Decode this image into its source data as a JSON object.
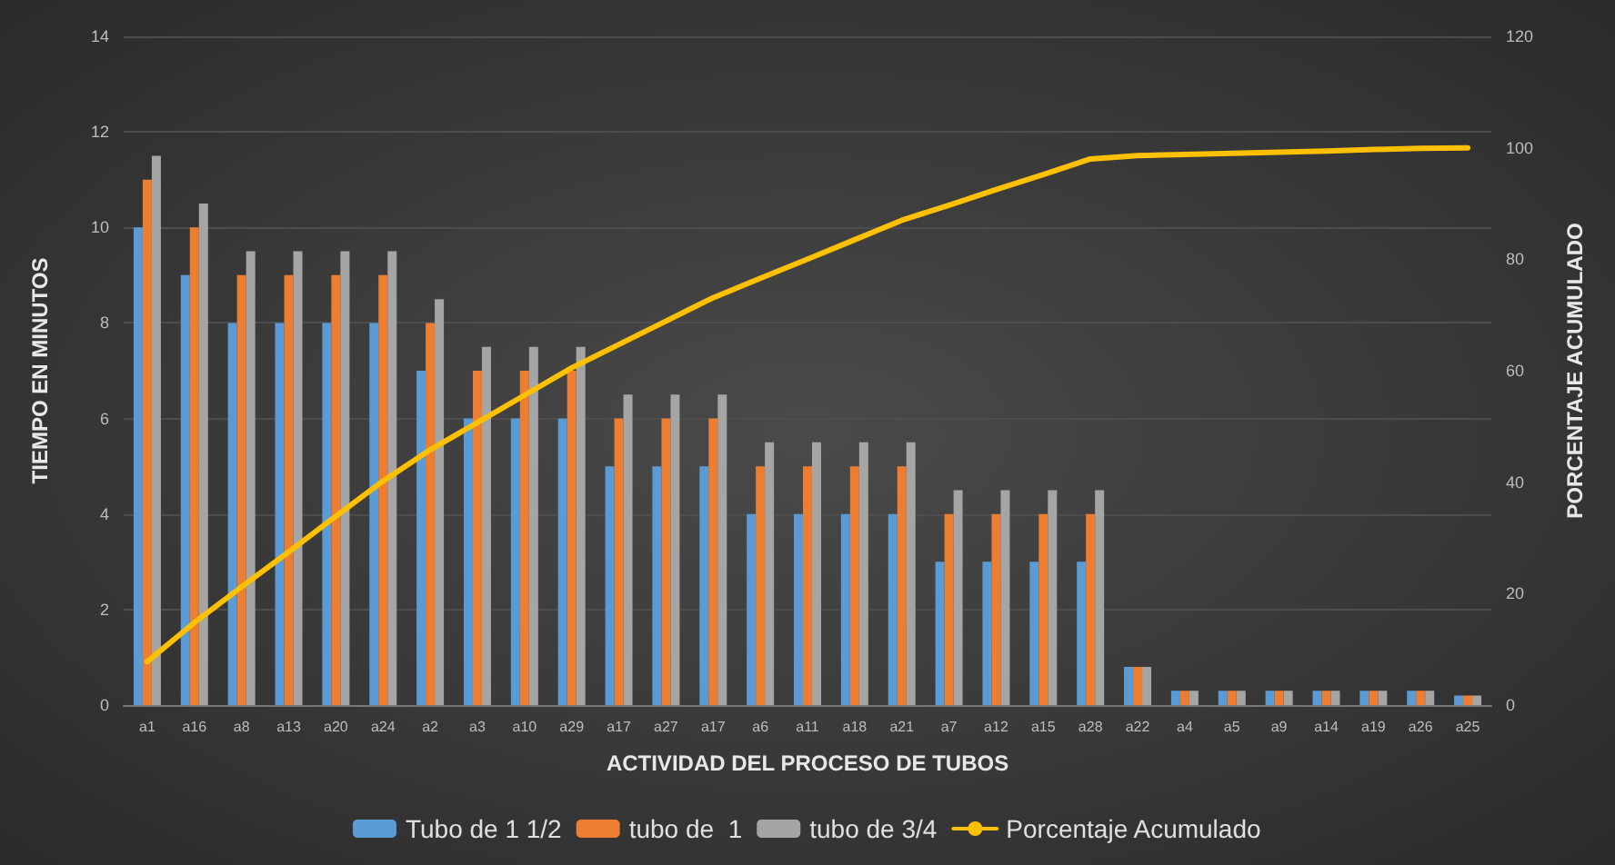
{
  "chart_data": {
    "type": "bar",
    "xlabel": "ACTIVIDAD DEL PROCESO DE TUBOS",
    "ylabel": "TIEMPO EN MINUTOS",
    "y2label": "PORCENTAJE ACUMULADO",
    "categories": [
      "a1",
      "a16",
      "a8",
      "a13",
      "a20",
      "a24",
      "a2",
      "a3",
      "a10",
      "a29",
      "a17",
      "a27",
      "a17",
      "a6",
      "a11",
      "a18",
      "a21",
      "a7",
      "a12",
      "a15",
      "a28",
      "a22",
      "a4",
      "a5",
      "a9",
      "a14",
      "a19",
      "a26",
      "a25"
    ],
    "series": [
      {
        "name": "Tubo de 1 1/2",
        "color": "#5b9bd5",
        "values": [
          10,
          9,
          8,
          8,
          8,
          8,
          7,
          6,
          6,
          6,
          5,
          5,
          5,
          4,
          4,
          4,
          4,
          3,
          3,
          3,
          3,
          0.8,
          0.3,
          0.3,
          0.3,
          0.3,
          0.3,
          0.3,
          0.2
        ]
      },
      {
        "name": "tubo de  1",
        "color": "#ed7d31",
        "values": [
          11,
          10,
          9,
          9,
          9,
          9,
          8,
          7,
          7,
          7,
          6,
          6,
          6,
          5,
          5,
          5,
          5,
          4,
          4,
          4,
          4,
          0.8,
          0.3,
          0.3,
          0.3,
          0.3,
          0.3,
          0.3,
          0.2
        ]
      },
      {
        "name": "tubo de 3/4",
        "color": "#a5a5a5",
        "values": [
          11.5,
          10.5,
          9.5,
          9.5,
          9.5,
          9.5,
          8.5,
          7.5,
          7.5,
          7.5,
          6.5,
          6.5,
          6.5,
          5.5,
          5.5,
          5.5,
          5.5,
          4.5,
          4.5,
          4.5,
          4.5,
          0.8,
          0.3,
          0.3,
          0.3,
          0.3,
          0.3,
          0.3,
          0.2
        ]
      },
      {
        "name": "Porcentaje Acumulado",
        "type": "line",
        "axis": "y2",
        "color": "#ffc000",
        "values": [
          7.8,
          14.8,
          21.2,
          27.5,
          33.9,
          40.2,
          45.8,
          50.7,
          55.6,
          60.5,
          64.7,
          68.9,
          73.1,
          76.6,
          80.0,
          83.5,
          87.0,
          89.7,
          92.5,
          95.2,
          98.0,
          98.6,
          98.8,
          99.0,
          99.2,
          99.4,
          99.7,
          99.9,
          100
        ]
      }
    ],
    "ylim": [
      0,
      14
    ],
    "yticks": [
      0,
      2,
      4,
      6,
      8,
      10,
      12,
      14
    ],
    "y2lim": [
      0,
      120
    ],
    "y2ticks": [
      0,
      20,
      40,
      60,
      80,
      100,
      120
    ],
    "grid": "y",
    "legend": "bottom",
    "marker": "none",
    "line_style": "solid"
  }
}
